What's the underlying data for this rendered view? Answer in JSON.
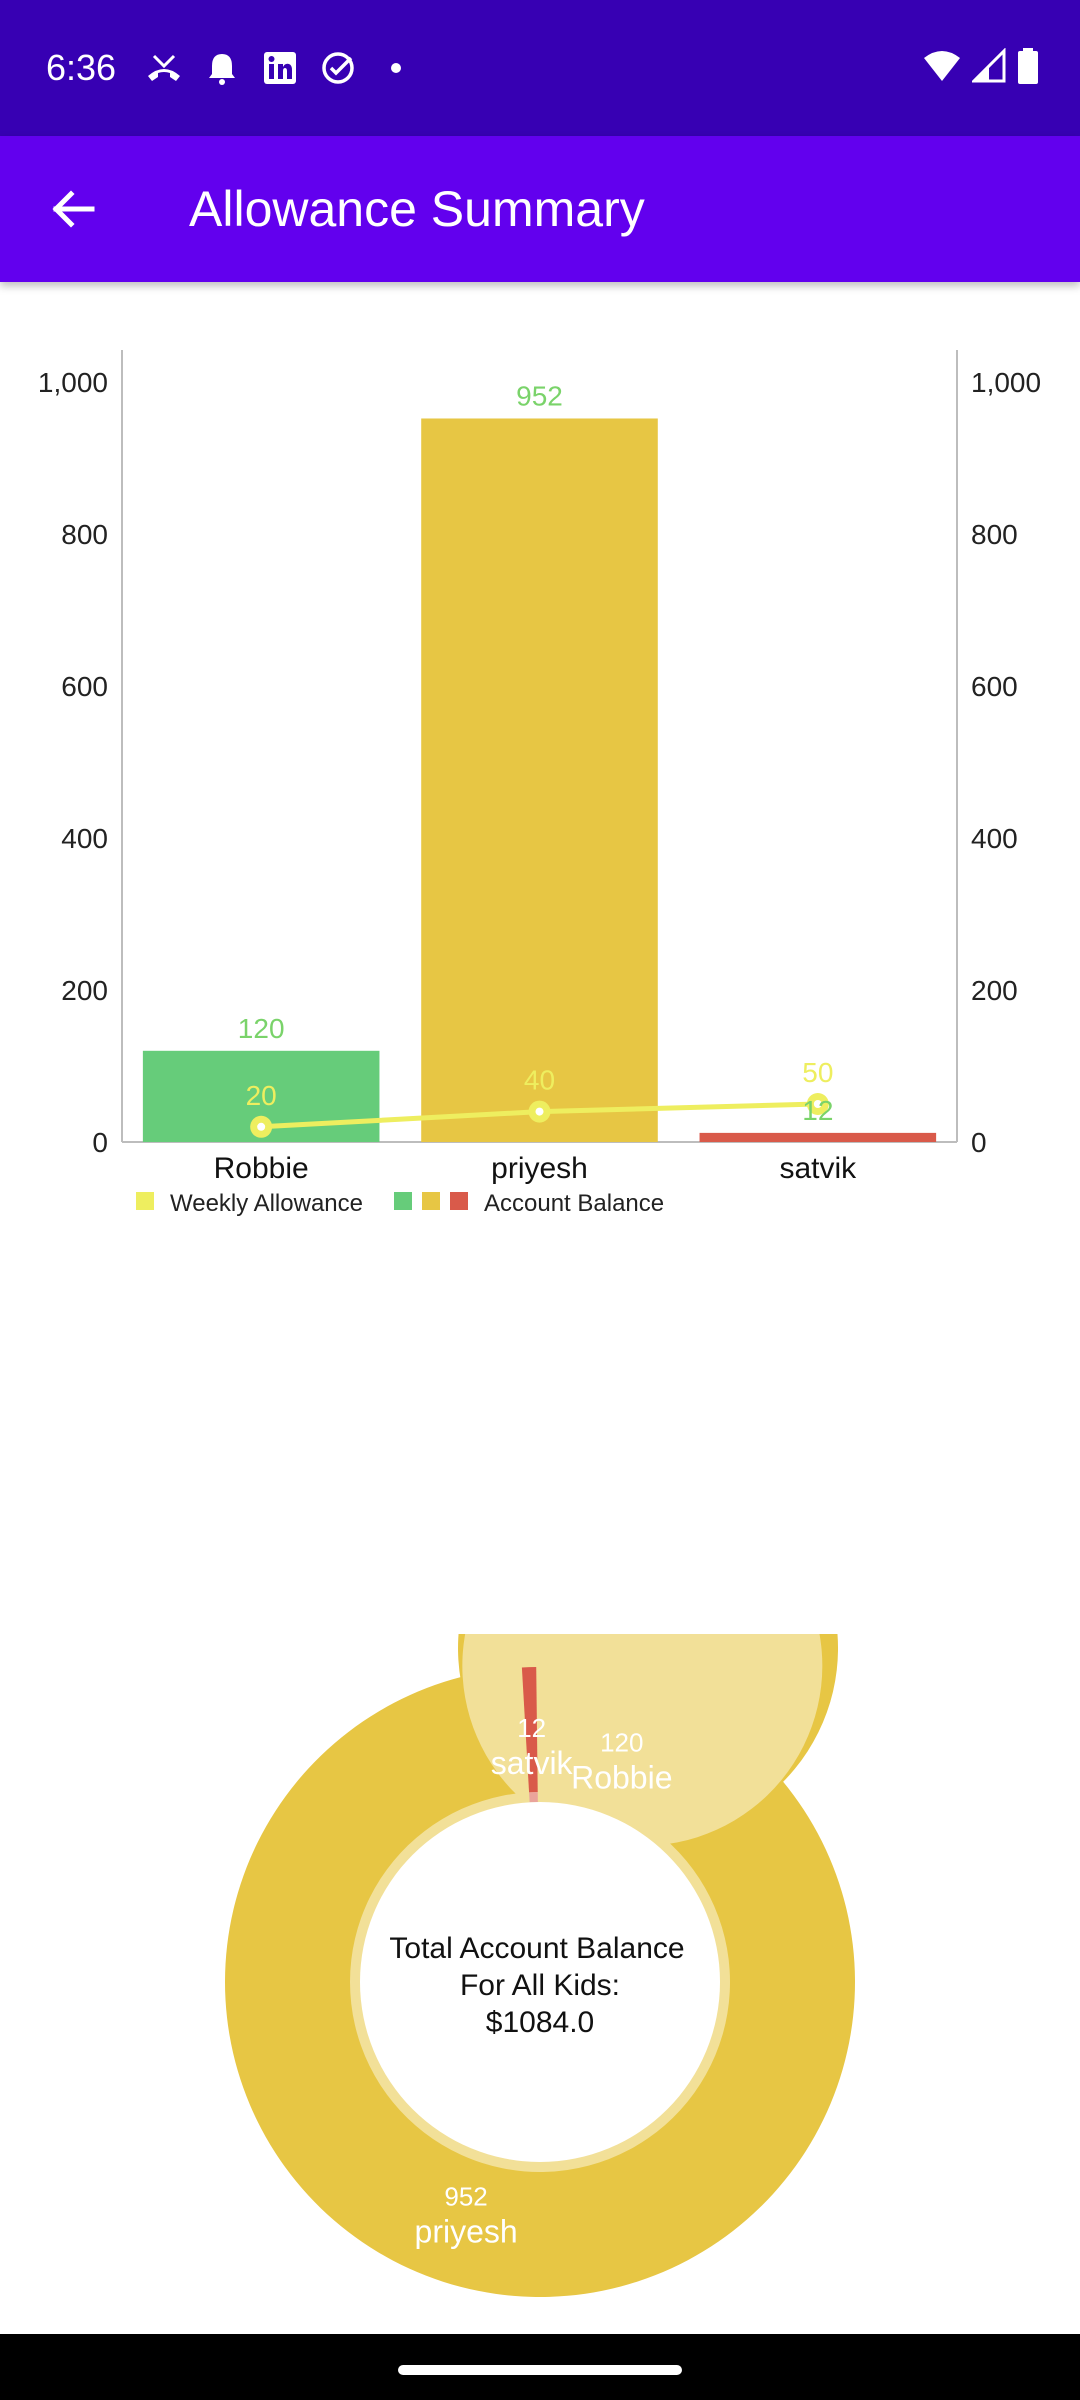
{
  "status_bar": {
    "time": "6:36",
    "left_icons": [
      "missed-call-icon",
      "alarm-icon",
      "linkedin-icon",
      "check-circle-icon",
      "dot-icon"
    ],
    "right_icons": [
      "wifi-icon",
      "signal-icon",
      "battery-icon"
    ]
  },
  "app_bar": {
    "title": "Allowance Summary",
    "back_icon": "arrow-back-icon"
  },
  "colors": {
    "status_bar": "#3700b3",
    "app_bar": "#6200ee",
    "green": "#66cc7a",
    "yellow": "#e7c644",
    "red": "#d95a4a",
    "line": "#eeee5f",
    "green_label": "#7ad36a"
  },
  "chart_data": [
    {
      "type": "bar",
      "categories": [
        "Robbie",
        "priyesh",
        "satvik"
      ],
      "series": [
        {
          "name": "Account Balance",
          "values": [
            120,
            952,
            12
          ],
          "colors": [
            "#66cc7a",
            "#e7c644",
            "#d95a4a"
          ],
          "value_labels": [
            "120",
            "952",
            "12"
          ]
        },
        {
          "name": "Weekly Allowance",
          "type": "line",
          "values": [
            20,
            40,
            50
          ],
          "value_labels": [
            "20",
            "40",
            "50"
          ]
        }
      ],
      "ylim": [
        0,
        1000
      ],
      "y_ticks": [
        0,
        200,
        400,
        600,
        800,
        1000
      ],
      "y_tick_labels": [
        "0",
        "200",
        "400",
        "600",
        "800",
        "1,000"
      ],
      "legend": {
        "position": "bottom-left",
        "entries": [
          "Weekly Allowance",
          "Account Balance"
        ]
      }
    },
    {
      "type": "pie",
      "style": "donut",
      "slices": [
        {
          "label": "Robbie",
          "value": 120,
          "value_label": "120",
          "color": "#66cc7a"
        },
        {
          "label": "priyesh",
          "value": 952,
          "value_label": "952",
          "color": "#e7c644"
        },
        {
          "label": "satvik",
          "value": 12,
          "value_label": "12",
          "color": "#d95a4a"
        }
      ],
      "center_text": {
        "line1": "Total Account Balance",
        "line2": "For All Kids:",
        "line3": "$1084.0"
      }
    }
  ]
}
